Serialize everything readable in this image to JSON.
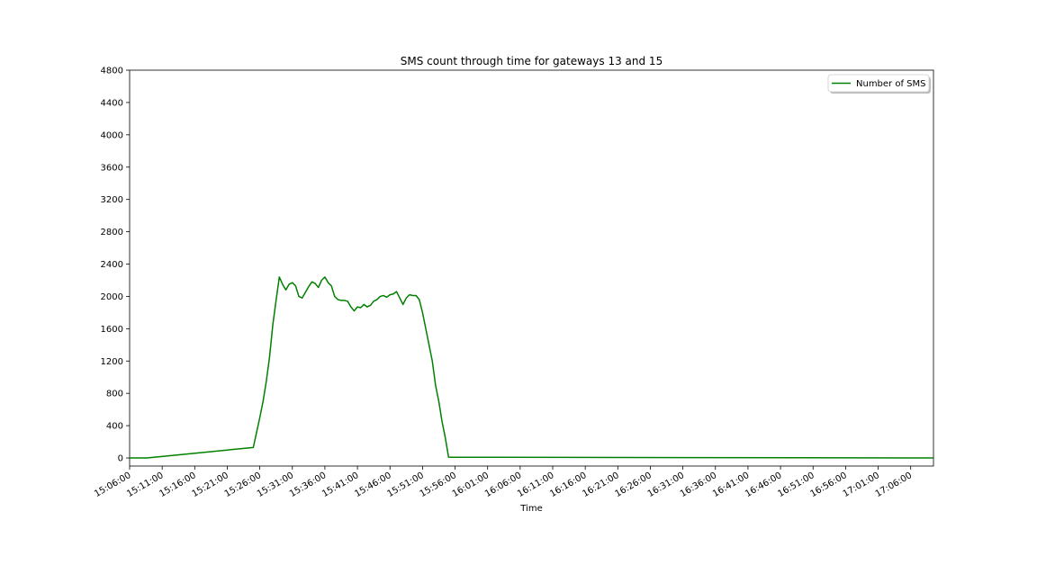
{
  "chart_data": {
    "type": "line",
    "title": "SMS count through time for gateways 13 and 15",
    "xlabel": "Time",
    "ylabel": "",
    "xlim": [
      "15:06:00",
      "17:09:30"
    ],
    "ylim": [
      -100,
      4800
    ],
    "y_ticks": [
      0,
      400,
      800,
      1200,
      1600,
      2000,
      2400,
      2800,
      3200,
      3600,
      4000,
      4400,
      4800
    ],
    "x_ticks": [
      "15:06:00",
      "15:11:00",
      "15:16:00",
      "15:21:00",
      "15:26:00",
      "15:31:00",
      "15:36:00",
      "15:41:00",
      "15:46:00",
      "15:51:00",
      "15:56:00",
      "16:01:00",
      "16:06:00",
      "16:11:00",
      "16:16:00",
      "16:21:00",
      "16:26:00",
      "16:31:00",
      "16:36:00",
      "16:41:00",
      "16:46:00",
      "16:51:00",
      "16:56:00",
      "17:01:00",
      "17:06:00"
    ],
    "grid": false,
    "legend_position": "top-right",
    "series": [
      {
        "name": "Number of SMS",
        "color": "#008000",
        "x": [
          "15:06:00",
          "15:08:40",
          "15:25:00",
          "15:26:00",
          "15:26:30",
          "15:27:00",
          "15:27:30",
          "15:28:00",
          "15:28:30",
          "15:29:00",
          "15:29:30",
          "15:30:00",
          "15:30:30",
          "15:31:00",
          "15:31:30",
          "15:32:00",
          "15:32:30",
          "15:33:00",
          "15:33:30",
          "15:34:00",
          "15:34:30",
          "15:35:00",
          "15:35:30",
          "15:36:00",
          "15:36:30",
          "15:37:00",
          "15:37:30",
          "15:38:00",
          "15:38:30",
          "15:39:00",
          "15:39:30",
          "15:40:00",
          "15:40:30",
          "15:41:00",
          "15:41:30",
          "15:42:00",
          "15:42:30",
          "15:43:00",
          "15:43:30",
          "15:44:00",
          "15:44:30",
          "15:45:00",
          "15:45:30",
          "15:46:00",
          "15:46:30",
          "15:47:00",
          "15:47:30",
          "15:48:00",
          "15:48:30",
          "15:49:00",
          "15:49:30",
          "15:50:00",
          "15:50:30",
          "15:51:00",
          "15:51:30",
          "15:52:00",
          "15:52:30",
          "15:53:00",
          "15:53:30",
          "15:54:00",
          "15:54:30",
          "15:55:00",
          "15:55:30",
          "15:56:00",
          "15:56:30",
          "15:57:00",
          "15:57:30",
          "15:58:00",
          "15:58:30",
          "15:59:00",
          "15:59:30",
          "16:00:00",
          "16:00:30",
          "16:01:00",
          "16:01:30",
          "16:02:00",
          "16:02:30",
          "17:09:30"
        ],
        "y": [
          0,
          0,
          130,
          500,
          700,
          950,
          1250,
          1650,
          1950,
          2240,
          2150,
          2080,
          2150,
          2170,
          2130,
          2000,
          1980,
          2050,
          2120,
          2180,
          2160,
          2110,
          2200,
          2240,
          2170,
          2130,
          2000,
          1960,
          1950,
          1950,
          1940,
          1870,
          1820,
          1870,
          1860,
          1900,
          1870,
          1890,
          1940,
          1960,
          2000,
          2010,
          1990,
          2020,
          2030,
          2060,
          1980,
          1900,
          1980,
          2020,
          2010,
          2010,
          1960,
          1800,
          1600,
          1400,
          1200,
          900,
          700,
          450,
          250,
          10,
          8,
          8,
          8,
          8,
          8,
          8,
          8,
          8,
          8,
          8,
          8,
          8,
          8,
          8,
          8,
          0
        ]
      }
    ]
  }
}
